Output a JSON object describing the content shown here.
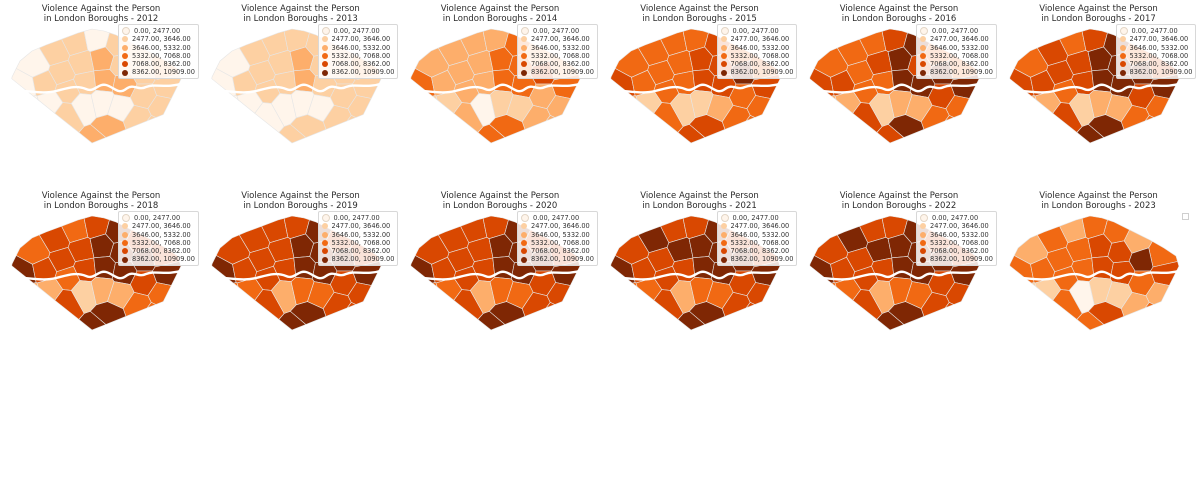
{
  "colors": {
    "classes": [
      "#fff5eb",
      "#fdd0a2",
      "#fdae6b",
      "#f16913",
      "#d94801",
      "#7f2704"
    ],
    "river": "#ffffff",
    "border": "#e6e6e6"
  },
  "legend": {
    "entries": [
      "0.00,  2477.00",
      "2477.00,  3646.00",
      "3646.00,  5332.00",
      "5332.00,  7068.00",
      "7068.00,  8362.00",
      "8362.00, 10909.00"
    ]
  },
  "panels": [
    {
      "title_line1": "Violence Against the Person",
      "title_line2": "in London Boroughs - 2012",
      "year": 2012,
      "show_legend": true,
      "classes": [
        0,
        1,
        1,
        0,
        1,
        1,
        2,
        0,
        1,
        1,
        1,
        2,
        1,
        1,
        1,
        0,
        0,
        1,
        1,
        2,
        2,
        1,
        1,
        1,
        1,
        0,
        0,
        0,
        1,
        1,
        2,
        2
      ]
    },
    {
      "title_line1": "Violence Against the Person",
      "title_line2": "in London Boroughs - 2013",
      "year": 2013,
      "show_legend": true,
      "classes": [
        0,
        1,
        1,
        1,
        1,
        1,
        2,
        0,
        1,
        1,
        1,
        2,
        1,
        1,
        1,
        0,
        0,
        1,
        1,
        2,
        1,
        1,
        1,
        1,
        0,
        0,
        0,
        0,
        1,
        1,
        1,
        1
      ]
    },
    {
      "title_line1": "Violence Against the Person",
      "title_line2": "in London Boroughs - 2014",
      "year": 2014,
      "show_legend": true,
      "classes": [
        2,
        2,
        2,
        2,
        3,
        2,
        2,
        3,
        2,
        2,
        2,
        3,
        3,
        4,
        3,
        1,
        1,
        2,
        2,
        3,
        3,
        2,
        2,
        3,
        2,
        0,
        1,
        1,
        2,
        2,
        3,
        3
      ]
    },
    {
      "title_line1": "Violence Against the Person",
      "title_line2": "in London Boroughs - 2015",
      "year": 2015,
      "show_legend": true,
      "classes": [
        3,
        3,
        3,
        3,
        4,
        3,
        3,
        4,
        3,
        3,
        3,
        4,
        4,
        5,
        4,
        2,
        1,
        3,
        3,
        4,
        4,
        3,
        3,
        4,
        3,
        1,
        1,
        2,
        3,
        3,
        4,
        4
      ]
    },
    {
      "title_line1": "Violence Against the Person",
      "title_line2": "in London Boroughs - 2016",
      "year": 2016,
      "show_legend": true,
      "classes": [
        3,
        3,
        3,
        4,
        5,
        3,
        3,
        4,
        4,
        3,
        4,
        5,
        4,
        5,
        5,
        2,
        2,
        3,
        3,
        5,
        5,
        4,
        3,
        4,
        4,
        1,
        2,
        2,
        3,
        3,
        5,
        4
      ]
    },
    {
      "title_line1": "Violence Against the Person",
      "title_line2": "in London Boroughs - 2017",
      "year": 2017,
      "show_legend": true,
      "classes": [
        3,
        4,
        3,
        4,
        5,
        3,
        4,
        4,
        4,
        4,
        4,
        5,
        5,
        5,
        5,
        2,
        2,
        3,
        4,
        5,
        5,
        4,
        3,
        5,
        4,
        1,
        2,
        2,
        3,
        3,
        5,
        5
      ]
    },
    {
      "title_line1": "Violence Against the Person",
      "title_line2": "in London Boroughs - 2018",
      "year": 2018,
      "show_legend": true,
      "classes": [
        3,
        4,
        3,
        4,
        5,
        4,
        4,
        5,
        4,
        4,
        4,
        5,
        5,
        5,
        5,
        2,
        2,
        3,
        4,
        5,
        5,
        4,
        3,
        5,
        4,
        1,
        2,
        2,
        3,
        3,
        5,
        5
      ]
    },
    {
      "title_line1": "Violence Against the Person",
      "title_line2": "in London Boroughs - 2019",
      "year": 2019,
      "show_legend": true,
      "classes": [
        4,
        4,
        4,
        4,
        5,
        4,
        4,
        5,
        4,
        4,
        4,
        5,
        5,
        5,
        5,
        3,
        3,
        4,
        4,
        5,
        5,
        4,
        4,
        5,
        4,
        2,
        3,
        3,
        4,
        4,
        5,
        5
      ]
    },
    {
      "title_line1": "Violence Against the Person",
      "title_line2": "in London Boroughs - 2020",
      "year": 2020,
      "show_legend": true,
      "classes": [
        4,
        4,
        4,
        4,
        5,
        4,
        4,
        5,
        4,
        4,
        4,
        5,
        5,
        5,
        5,
        3,
        3,
        4,
        4,
        5,
        5,
        4,
        4,
        5,
        4,
        2,
        3,
        3,
        4,
        4,
        5,
        5
      ]
    },
    {
      "title_line1": "Violence Against the Person",
      "title_line2": "in London Boroughs - 2021",
      "year": 2021,
      "show_legend": true,
      "classes": [
        4,
        5,
        4,
        4,
        5,
        4,
        4,
        5,
        4,
        4,
        5,
        5,
        5,
        5,
        5,
        3,
        3,
        4,
        4,
        5,
        5,
        4,
        4,
        5,
        4,
        2,
        3,
        3,
        4,
        4,
        5,
        5
      ]
    },
    {
      "title_line1": "Violence Against the Person",
      "title_line2": "in London Boroughs - 2022",
      "year": 2022,
      "show_legend": true,
      "classes": [
        4,
        5,
        4,
        4,
        5,
        4,
        4,
        5,
        4,
        4,
        5,
        5,
        5,
        5,
        5,
        3,
        3,
        4,
        4,
        5,
        5,
        4,
        4,
        5,
        4,
        2,
        3,
        3,
        4,
        4,
        5,
        5
      ]
    },
    {
      "title_line1": "Violence Against the Person",
      "title_line2": "in London Boroughs - 2023",
      "year": 2023,
      "show_legend": false,
      "classes": [
        2,
        3,
        2,
        3,
        3,
        2,
        3,
        3,
        3,
        3,
        3,
        4,
        4,
        5,
        4,
        1,
        1,
        3,
        3,
        4,
        4,
        3,
        2,
        3,
        3,
        0,
        1,
        1,
        2,
        3,
        4,
        3
      ]
    }
  ]
}
